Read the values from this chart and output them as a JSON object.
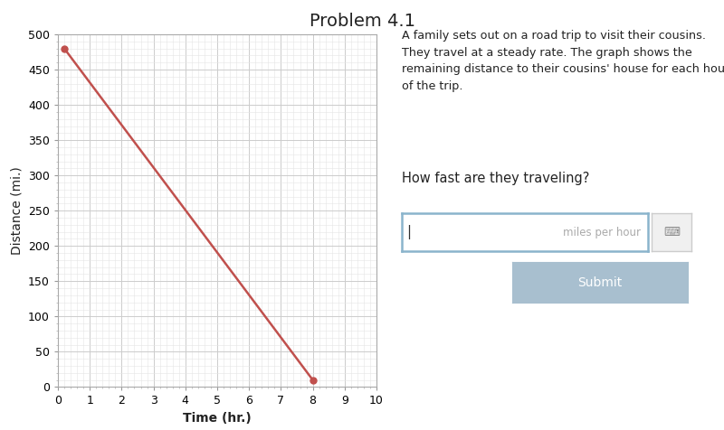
{
  "title": "Problem 4.1",
  "title_fontsize": 14,
  "description_lines": [
    "A family sets out on a road trip to visit their cousins.",
    "They travel at a steady rate. The graph shows the",
    "remaining distance to their cousins' house for each hour",
    "of the trip."
  ],
  "question": "How fast are they traveling?",
  "input_label": "miles per hour",
  "submit_label": "Submit",
  "line_x": [
    0.2,
    8.0
  ],
  "line_y": [
    480,
    10
  ],
  "point_color": "#c0504d",
  "line_color": "#c0504d",
  "xlabel": "Time (hr.)",
  "ylabel": "Distance (mi.)",
  "xlim": [
    0,
    10
  ],
  "ylim": [
    0,
    500
  ],
  "xticks": [
    0,
    1,
    2,
    3,
    4,
    5,
    6,
    7,
    8,
    9,
    10
  ],
  "yticks": [
    0,
    50,
    100,
    150,
    200,
    250,
    300,
    350,
    400,
    450,
    500
  ],
  "grid_major_color": "#cccccc",
  "grid_minor_color": "#e5e5e5",
  "bg_color": "#ffffff",
  "input_border_color": "#8ab4cc",
  "submit_bg": "#a8bfcf",
  "submit_text_color": "#ffffff",
  "text_color": "#222222",
  "axis_label_fontsize": 10,
  "tick_fontsize": 9
}
